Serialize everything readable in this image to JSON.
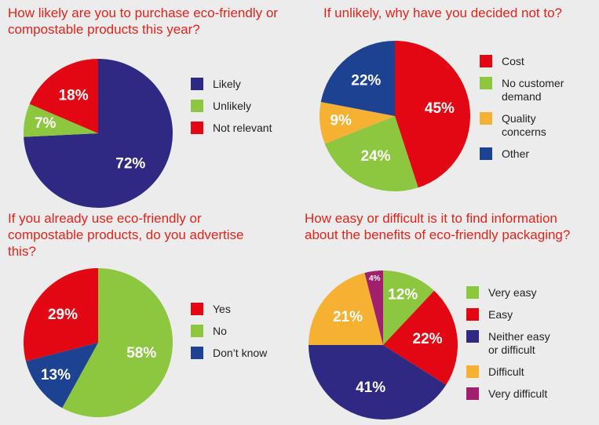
{
  "chart_data": [
    {
      "type": "pie",
      "title": "How likely are you to purchase eco-friendly or compostable products this year?",
      "categories": [
        "Likely",
        "Unlikely",
        "Not relevant"
      ],
      "values": [
        72,
        7,
        18
      ],
      "value_labels": [
        "72%",
        "7%",
        "18%"
      ],
      "colors": [
        "#2e2a84",
        "#8dc63f",
        "#e30613"
      ]
    },
    {
      "type": "pie",
      "title": "If unlikely, why have you decided not to?",
      "categories": [
        "Cost",
        "No customer demand",
        "Quality concerns",
        "Other"
      ],
      "values": [
        45,
        24,
        9,
        22
      ],
      "value_labels": [
        "45%",
        "24%",
        "9%",
        "22%"
      ],
      "colors": [
        "#e30613",
        "#8dc63f",
        "#f6b133",
        "#1d4291"
      ]
    },
    {
      "type": "pie",
      "title": "If you already use eco-friendly or compostable products, do you advertise this?",
      "categories": [
        "Yes",
        "No",
        "Don’t know"
      ],
      "values": [
        29,
        58,
        13
      ],
      "value_labels": [
        "29%",
        "58%",
        "13%"
      ],
      "colors": [
        "#e30613",
        "#8dc63f",
        "#1d4291"
      ]
    },
    {
      "type": "pie",
      "title": "How easy or difficult is it to find information about the benefits of eco-friendly packaging?",
      "categories": [
        "Very easy",
        "Easy",
        "Neither easy or difficult",
        "Difficult",
        "Very difficult"
      ],
      "values": [
        12,
        22,
        41,
        21,
        4
      ],
      "value_labels": [
        "12%",
        "22%",
        "41%",
        "21%",
        "4%"
      ],
      "colors": [
        "#8dc63f",
        "#e30613",
        "#2e2a84",
        "#f6b133",
        "#a0206e"
      ]
    }
  ]
}
